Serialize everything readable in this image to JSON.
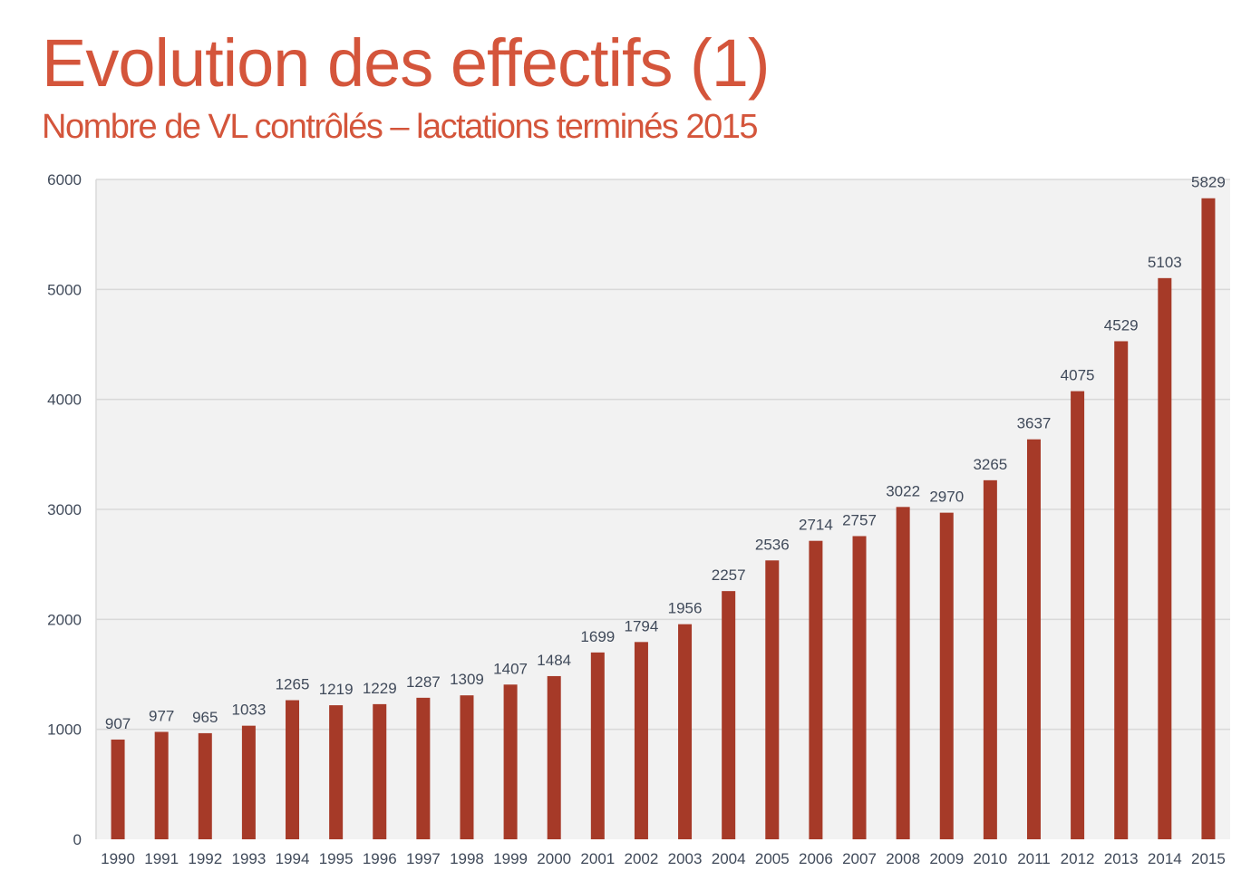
{
  "slide": {
    "title": "Evolution des effectifs (1)",
    "subtitle": "Nombre de VL contrôlés – lactations terminés 2015",
    "title_color": "#d4553b",
    "bar_color": "#a63a28",
    "plot_background": "#f2f2f2",
    "gridline_color": "#d9d9d9",
    "text_color": "#404a5a"
  },
  "chart_data": {
    "type": "bar",
    "categories": [
      "1990",
      "1991",
      "1992",
      "1993",
      "1994",
      "1995",
      "1996",
      "1997",
      "1998",
      "1999",
      "2000",
      "2001",
      "2002",
      "2003",
      "2004",
      "2005",
      "2006",
      "2007",
      "2008",
      "2009",
      "2010",
      "2011",
      "2012",
      "2013",
      "2014",
      "2015"
    ],
    "values": [
      907,
      977,
      965,
      1033,
      1265,
      1219,
      1229,
      1287,
      1309,
      1407,
      1484,
      1699,
      1794,
      1956,
      2257,
      2536,
      2714,
      2757,
      3022,
      2970,
      3265,
      3637,
      4075,
      4529,
      5103,
      5829
    ],
    "ylim": [
      0,
      6000
    ],
    "yticks": [
      0,
      1000,
      2000,
      3000,
      4000,
      5000,
      6000
    ],
    "data_labels": true,
    "grid": true,
    "legend": "none"
  }
}
